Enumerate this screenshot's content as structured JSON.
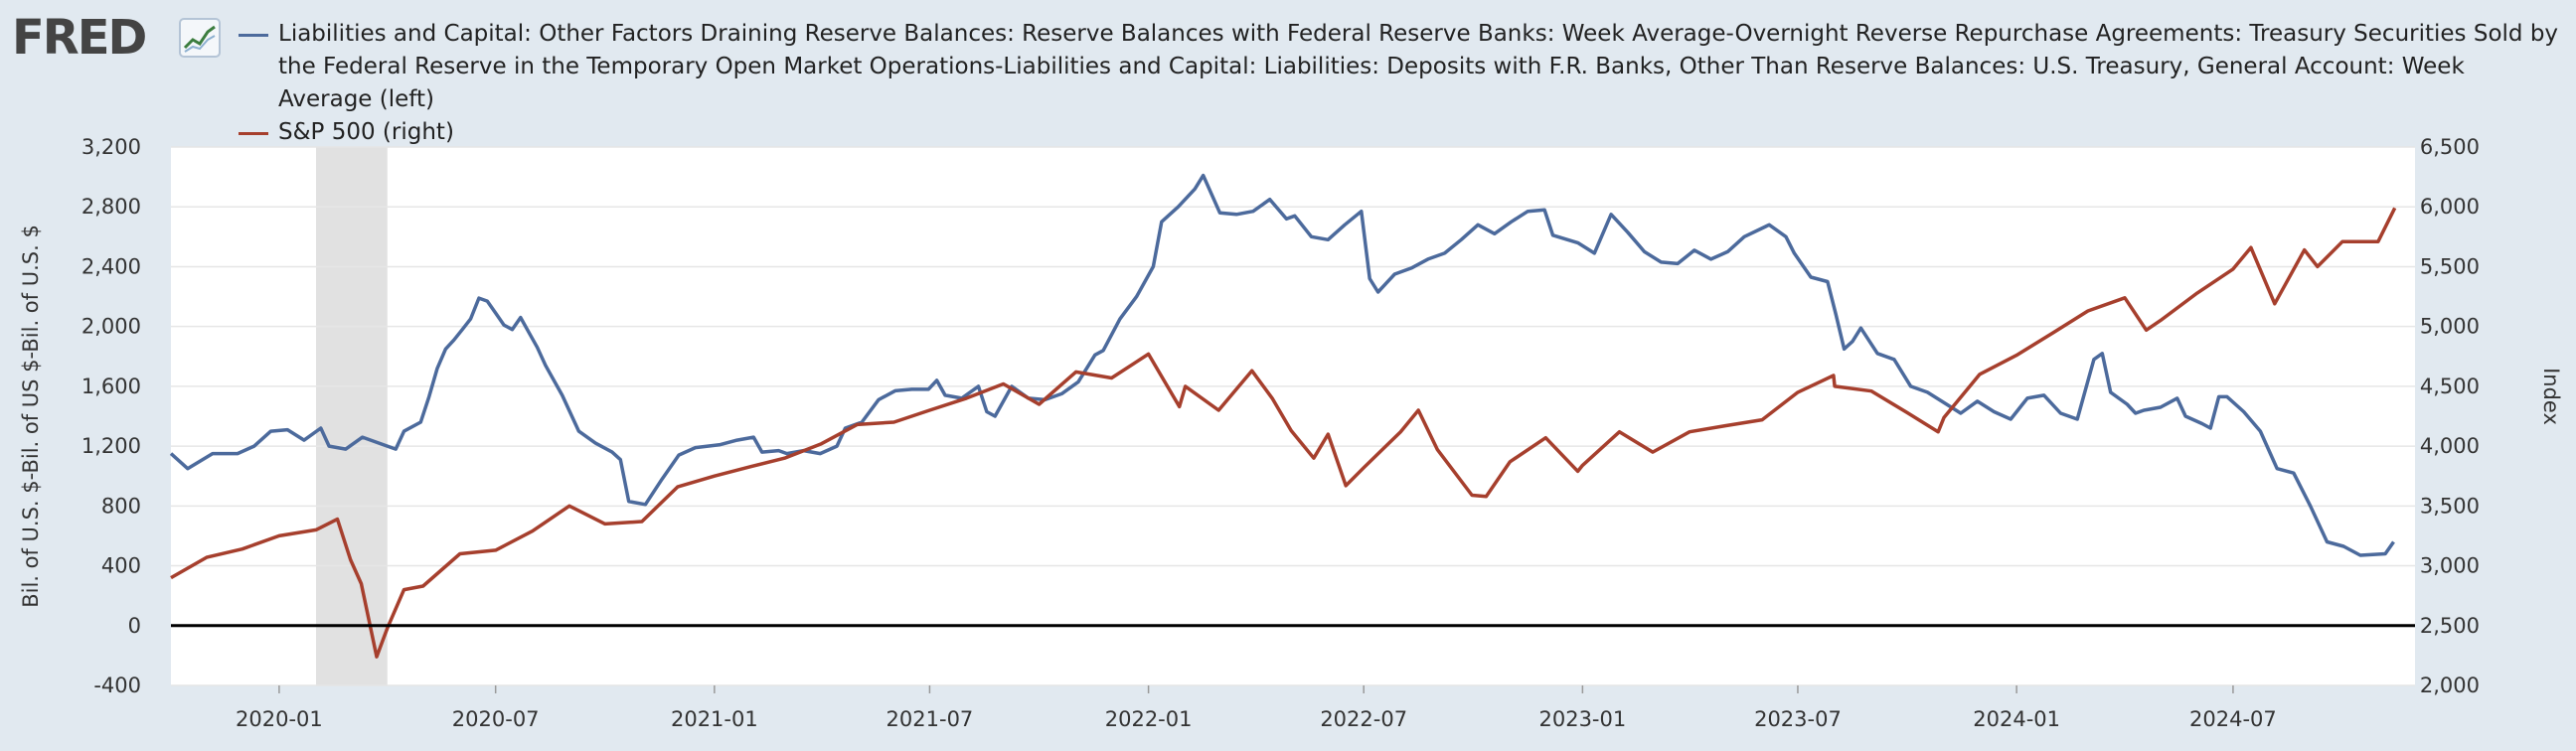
{
  "logo": {
    "text": "FRED",
    "mark": "trend-line-logo-icon"
  },
  "chart_data": {
    "type": "line",
    "title": "",
    "xlabel": "",
    "ylabel_left": "Bil. of U.S. $-Bil. of US $-Bil. of U.S. $",
    "ylabel_right": "Index",
    "y_left_range": [
      -400,
      3200
    ],
    "y_left_ticks": [
      "3,200",
      "2,800",
      "2,400",
      "2,000",
      "1,600",
      "1,200",
      "800",
      "400",
      "0",
      "-400"
    ],
    "y_left_tick_values": [
      3200,
      2800,
      2400,
      2000,
      1600,
      1200,
      800,
      400,
      0,
      -400
    ],
    "y_right_range": [
      2000,
      6500
    ],
    "y_right_ticks": [
      "6,500",
      "6,000",
      "5,500",
      "5,000",
      "4,500",
      "4,000",
      "3,500",
      "3,000",
      "2,500",
      "2,000"
    ],
    "y_right_tick_values": [
      6500,
      6000,
      5500,
      5000,
      4500,
      4000,
      3500,
      3000,
      2500,
      2000
    ],
    "x_range": [
      "2019-10-02",
      "2024-12-01"
    ],
    "x_ticks": [
      "2020-01",
      "2020-07",
      "2021-01",
      "2021-07",
      "2022-01",
      "2022-07",
      "2023-01",
      "2023-07",
      "2024-01",
      "2024-07"
    ],
    "x_tick_dates": [
      "2020-01-01",
      "2020-07-01",
      "2021-01-01",
      "2021-07-01",
      "2022-01-01",
      "2022-07-01",
      "2023-01-01",
      "2023-07-01",
      "2024-01-01",
      "2024-07-01"
    ],
    "recession": {
      "start": "2020-02-01",
      "end": "2020-04-01"
    },
    "zero_line": 0,
    "grid": true,
    "legend_placement": "top",
    "series": [
      {
        "name": "Liabilities and Capital: Other Factors Draining Reserve Balances: Reserve Balances with Federal Reserve Banks: Week Average-Overnight Reverse Repurchase Agreements: Treasury Securities Sold by the Federal Reserve in the Temporary Open Market Operations-Liabilities and Capital: Liabilities: Deposits with F.R. Banks, Other Than Reserve Balances: U.S. Treasury, General Account: Week Average (left)",
        "axis": "left",
        "color": "#4c6a9c",
        "points": [
          [
            "2019-10-02",
            1150
          ],
          [
            "2019-10-16",
            1050
          ],
          [
            "2019-11-06",
            1150
          ],
          [
            "2019-11-27",
            1150
          ],
          [
            "2019-12-11",
            1200
          ],
          [
            "2019-12-25",
            1300
          ],
          [
            "2020-01-08",
            1310
          ],
          [
            "2020-01-22",
            1240
          ],
          [
            "2020-02-05",
            1320
          ],
          [
            "2020-02-12",
            1200
          ],
          [
            "2020-02-26",
            1180
          ],
          [
            "2020-03-11",
            1260
          ],
          [
            "2020-03-25",
            1220
          ],
          [
            "2020-04-08",
            1180
          ],
          [
            "2020-04-15",
            1300
          ],
          [
            "2020-04-29",
            1360
          ],
          [
            "2020-05-06",
            1530
          ],
          [
            "2020-05-13",
            1720
          ],
          [
            "2020-05-20",
            1850
          ],
          [
            "2020-05-27",
            1910
          ],
          [
            "2020-06-03",
            1980
          ],
          [
            "2020-06-10",
            2050
          ],
          [
            "2020-06-17",
            2190
          ],
          [
            "2020-06-24",
            2170
          ],
          [
            "2020-07-01",
            2090
          ],
          [
            "2020-07-08",
            2010
          ],
          [
            "2020-07-15",
            1980
          ],
          [
            "2020-07-22",
            2060
          ],
          [
            "2020-07-29",
            1960
          ],
          [
            "2020-08-05",
            1860
          ],
          [
            "2020-08-12",
            1740
          ],
          [
            "2020-08-26",
            1540
          ],
          [
            "2020-09-09",
            1300
          ],
          [
            "2020-09-23",
            1220
          ],
          [
            "2020-10-07",
            1160
          ],
          [
            "2020-10-14",
            1110
          ],
          [
            "2020-10-21",
            830
          ],
          [
            "2020-11-04",
            810
          ],
          [
            "2020-11-18",
            980
          ],
          [
            "2020-12-02",
            1140
          ],
          [
            "2020-12-16",
            1190
          ],
          [
            "2021-01-06",
            1210
          ],
          [
            "2021-01-20",
            1240
          ],
          [
            "2021-02-03",
            1260
          ],
          [
            "2021-02-10",
            1160
          ],
          [
            "2021-02-24",
            1170
          ],
          [
            "2021-03-03",
            1150
          ],
          [
            "2021-03-17",
            1170
          ],
          [
            "2021-03-31",
            1150
          ],
          [
            "2021-04-14",
            1200
          ],
          [
            "2021-04-21",
            1320
          ],
          [
            "2021-05-05",
            1360
          ],
          [
            "2021-05-19",
            1510
          ],
          [
            "2021-06-02",
            1570
          ],
          [
            "2021-06-16",
            1580
          ],
          [
            "2021-06-30",
            1580
          ],
          [
            "2021-07-07",
            1640
          ],
          [
            "2021-07-14",
            1540
          ],
          [
            "2021-07-28",
            1520
          ],
          [
            "2021-08-11",
            1600
          ],
          [
            "2021-08-18",
            1430
          ],
          [
            "2021-08-25",
            1400
          ],
          [
            "2021-09-08",
            1600
          ],
          [
            "2021-09-22",
            1520
          ],
          [
            "2021-10-06",
            1510
          ],
          [
            "2021-10-20",
            1550
          ],
          [
            "2021-11-03",
            1630
          ],
          [
            "2021-11-17",
            1810
          ],
          [
            "2021-11-24",
            1840
          ],
          [
            "2021-12-08",
            2050
          ],
          [
            "2021-12-22",
            2200
          ],
          [
            "2022-01-05",
            2400
          ],
          [
            "2022-01-12",
            2700
          ],
          [
            "2022-01-26",
            2800
          ],
          [
            "2022-02-09",
            2920
          ],
          [
            "2022-02-16",
            3010
          ],
          [
            "2022-03-02",
            2760
          ],
          [
            "2022-03-16",
            2750
          ],
          [
            "2022-03-30",
            2770
          ],
          [
            "2022-04-13",
            2850
          ],
          [
            "2022-04-27",
            2720
          ],
          [
            "2022-05-04",
            2740
          ],
          [
            "2022-05-18",
            2600
          ],
          [
            "2022-06-01",
            2580
          ],
          [
            "2022-06-15",
            2680
          ],
          [
            "2022-06-29",
            2770
          ],
          [
            "2022-07-06",
            2320
          ],
          [
            "2022-07-13",
            2230
          ],
          [
            "2022-07-27",
            2350
          ],
          [
            "2022-08-10",
            2390
          ],
          [
            "2022-08-24",
            2450
          ],
          [
            "2022-09-07",
            2490
          ],
          [
            "2022-09-21",
            2580
          ],
          [
            "2022-10-05",
            2680
          ],
          [
            "2022-10-19",
            2620
          ],
          [
            "2022-11-02",
            2700
          ],
          [
            "2022-11-16",
            2770
          ],
          [
            "2022-11-30",
            2780
          ],
          [
            "2022-12-07",
            2610
          ],
          [
            "2022-12-28",
            2560
          ],
          [
            "2023-01-11",
            2490
          ],
          [
            "2023-01-25",
            2750
          ],
          [
            "2023-02-08",
            2630
          ],
          [
            "2023-02-22",
            2500
          ],
          [
            "2023-03-08",
            2430
          ],
          [
            "2023-03-22",
            2420
          ],
          [
            "2023-04-05",
            2510
          ],
          [
            "2023-04-19",
            2450
          ],
          [
            "2023-05-03",
            2500
          ],
          [
            "2023-05-17",
            2600
          ],
          [
            "2023-06-07",
            2680
          ],
          [
            "2023-06-21",
            2600
          ],
          [
            "2023-06-28",
            2490
          ],
          [
            "2023-07-12",
            2330
          ],
          [
            "2023-07-26",
            2300
          ],
          [
            "2023-08-02",
            2080
          ],
          [
            "2023-08-09",
            1850
          ],
          [
            "2023-08-16",
            1900
          ],
          [
            "2023-08-23",
            1990
          ],
          [
            "2023-09-06",
            1820
          ],
          [
            "2023-09-20",
            1780
          ],
          [
            "2023-10-04",
            1600
          ],
          [
            "2023-10-18",
            1560
          ],
          [
            "2023-11-01",
            1490
          ],
          [
            "2023-11-15",
            1420
          ],
          [
            "2023-11-29",
            1500
          ],
          [
            "2023-12-13",
            1430
          ],
          [
            "2023-12-27",
            1380
          ],
          [
            "2024-01-10",
            1520
          ],
          [
            "2024-01-24",
            1540
          ],
          [
            "2024-02-07",
            1420
          ],
          [
            "2024-02-21",
            1380
          ],
          [
            "2024-03-06",
            1780
          ],
          [
            "2024-03-13",
            1820
          ],
          [
            "2024-03-20",
            1560
          ],
          [
            "2024-04-03",
            1480
          ],
          [
            "2024-04-10",
            1420
          ],
          [
            "2024-04-17",
            1440
          ],
          [
            "2024-05-01",
            1460
          ],
          [
            "2024-05-15",
            1520
          ],
          [
            "2024-05-22",
            1400
          ],
          [
            "2024-06-05",
            1350
          ],
          [
            "2024-06-12",
            1320
          ],
          [
            "2024-06-19",
            1530
          ],
          [
            "2024-06-26",
            1530
          ],
          [
            "2024-07-10",
            1430
          ],
          [
            "2024-07-24",
            1300
          ],
          [
            "2024-08-07",
            1050
          ],
          [
            "2024-08-21",
            1020
          ],
          [
            "2024-09-04",
            800
          ],
          [
            "2024-09-18",
            560
          ],
          [
            "2024-10-02",
            530
          ],
          [
            "2024-10-16",
            470
          ],
          [
            "2024-11-06",
            480
          ],
          [
            "2024-11-13",
            560
          ]
        ]
      },
      {
        "name": "S&P 500 (right)",
        "axis": "right",
        "color": "#a63f2d",
        "points": [
          [
            "2019-10-02",
            2900
          ],
          [
            "2019-11-01",
            3070
          ],
          [
            "2019-12-01",
            3140
          ],
          [
            "2020-01-01",
            3250
          ],
          [
            "2020-02-01",
            3300
          ],
          [
            "2020-02-19",
            3390
          ],
          [
            "2020-03-01",
            3050
          ],
          [
            "2020-03-10",
            2850
          ],
          [
            "2020-03-23",
            2240
          ],
          [
            "2020-04-01",
            2480
          ],
          [
            "2020-04-15",
            2800
          ],
          [
            "2020-05-01",
            2830
          ],
          [
            "2020-06-01",
            3100
          ],
          [
            "2020-07-01",
            3130
          ],
          [
            "2020-08-01",
            3290
          ],
          [
            "2020-09-01",
            3500
          ],
          [
            "2020-10-01",
            3350
          ],
          [
            "2020-11-01",
            3370
          ],
          [
            "2020-12-01",
            3660
          ],
          [
            "2021-01-01",
            3750
          ],
          [
            "2021-02-01",
            3830
          ],
          [
            "2021-03-01",
            3900
          ],
          [
            "2021-04-01",
            4020
          ],
          [
            "2021-05-01",
            4180
          ],
          [
            "2021-06-01",
            4200
          ],
          [
            "2021-07-01",
            4300
          ],
          [
            "2021-08-01",
            4400
          ],
          [
            "2021-09-01",
            4520
          ],
          [
            "2021-10-01",
            4350
          ],
          [
            "2021-11-01",
            4620
          ],
          [
            "2021-12-01",
            4570
          ],
          [
            "2022-01-01",
            4770
          ],
          [
            "2022-01-27",
            4330
          ],
          [
            "2022-02-01",
            4500
          ],
          [
            "2022-03-01",
            4300
          ],
          [
            "2022-03-29",
            4630
          ],
          [
            "2022-04-15",
            4400
          ],
          [
            "2022-05-01",
            4130
          ],
          [
            "2022-05-20",
            3900
          ],
          [
            "2022-06-01",
            4100
          ],
          [
            "2022-06-16",
            3670
          ],
          [
            "2022-07-01",
            3820
          ],
          [
            "2022-08-01",
            4120
          ],
          [
            "2022-08-16",
            4300
          ],
          [
            "2022-09-01",
            3970
          ],
          [
            "2022-09-30",
            3590
          ],
          [
            "2022-10-12",
            3580
          ],
          [
            "2022-11-01",
            3870
          ],
          [
            "2022-12-01",
            4070
          ],
          [
            "2022-12-28",
            3790
          ],
          [
            "2023-01-01",
            3840
          ],
          [
            "2023-02-01",
            4120
          ],
          [
            "2023-03-01",
            3950
          ],
          [
            "2023-04-01",
            4120
          ],
          [
            "2023-05-01",
            4170
          ],
          [
            "2023-06-01",
            4220
          ],
          [
            "2023-07-01",
            4450
          ],
          [
            "2023-07-31",
            4590
          ],
          [
            "2023-08-01",
            4500
          ],
          [
            "2023-09-01",
            4460
          ],
          [
            "2023-10-01",
            4280
          ],
          [
            "2023-10-27",
            4120
          ],
          [
            "2023-11-01",
            4240
          ],
          [
            "2023-12-01",
            4600
          ],
          [
            "2024-01-01",
            4760
          ],
          [
            "2024-02-01",
            4950
          ],
          [
            "2024-03-01",
            5130
          ],
          [
            "2024-04-01",
            5240
          ],
          [
            "2024-04-19",
            4970
          ],
          [
            "2024-05-01",
            5050
          ],
          [
            "2024-06-01",
            5280
          ],
          [
            "2024-07-01",
            5480
          ],
          [
            "2024-07-16",
            5660
          ],
          [
            "2024-08-05",
            5190
          ],
          [
            "2024-08-30",
            5640
          ],
          [
            "2024-09-10",
            5500
          ],
          [
            "2024-10-01",
            5710
          ],
          [
            "2024-10-31",
            5710
          ],
          [
            "2024-11-14",
            5990
          ]
        ]
      }
    ]
  }
}
